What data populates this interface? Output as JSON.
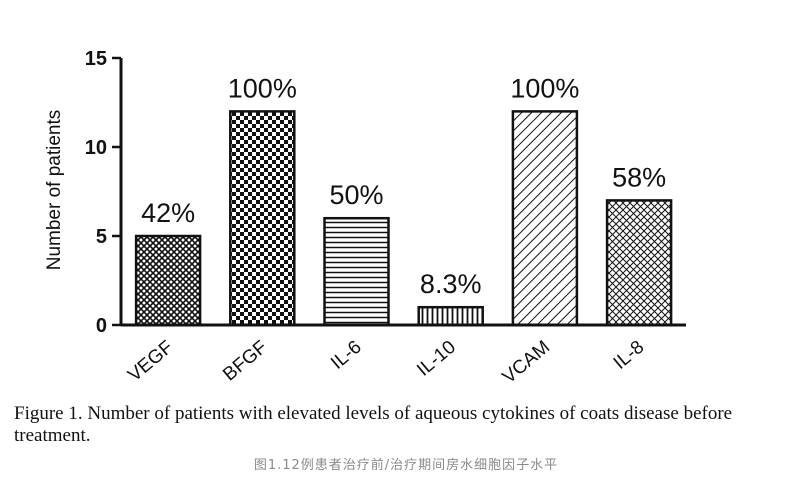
{
  "chart_data": {
    "type": "bar",
    "categories": [
      "VEGF",
      "BFGF",
      "IL-6",
      "IL-10",
      "VCAM",
      "IL-8"
    ],
    "values": [
      5,
      12,
      6,
      1,
      12,
      7
    ],
    "data_labels": [
      "42%",
      "100%",
      "50%",
      "8.3%",
      "100%",
      "58%"
    ],
    "patterns": [
      "dense-check",
      "checkerboard",
      "horizontal-lines",
      "vertical-lines",
      "diagonal-lines",
      "cross-hatch"
    ],
    "ylabel": "Number of patients",
    "xlabel": "",
    "ylim": [
      0,
      15
    ],
    "yticks": [
      0,
      5,
      10,
      15
    ],
    "grid": false,
    "legend": "none",
    "colors": {
      "ink": "#111111",
      "fill": "#ffffff"
    }
  },
  "caption": {
    "english": "Figure 1.  Number of patients with elevated levels of aqueous cytokines of coats disease before treatment.",
    "chinese": "图1.12例患者治疗前/治疗期间房水细胞因子水平"
  }
}
